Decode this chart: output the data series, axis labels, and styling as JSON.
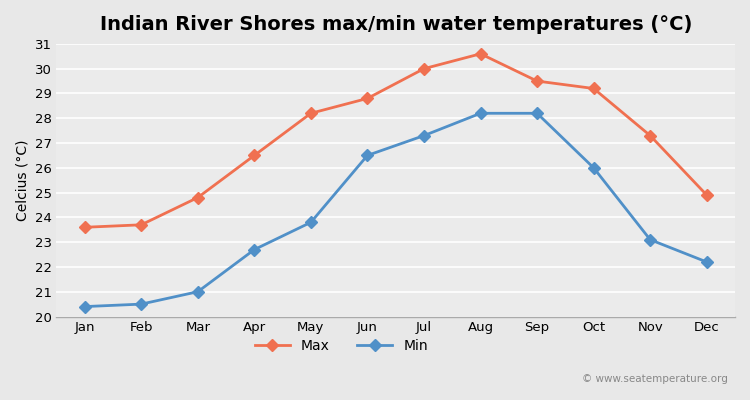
{
  "title": "Indian River Shores max/min water temperatures (°C)",
  "ylabel": "Celcius (°C)",
  "months": [
    "Jan",
    "Feb",
    "Mar",
    "Apr",
    "May",
    "Jun",
    "Jul",
    "Aug",
    "Sep",
    "Oct",
    "Nov",
    "Dec"
  ],
  "max_temps": [
    23.6,
    23.7,
    24.8,
    26.5,
    28.2,
    28.8,
    30.0,
    30.6,
    29.5,
    29.2,
    27.3,
    24.9
  ],
  "min_temps": [
    20.4,
    20.5,
    21.0,
    22.7,
    23.8,
    26.5,
    27.3,
    28.2,
    28.2,
    26.0,
    23.1,
    22.2
  ],
  "max_color": "#f07050",
  "min_color": "#5090c8",
  "bg_color": "#e8e8e8",
  "plot_bg_color": "#ebebeb",
  "grid_color": "#ffffff",
  "ylim": [
    20,
    31
  ],
  "yticks": [
    20,
    21,
    22,
    23,
    24,
    25,
    26,
    27,
    28,
    29,
    30,
    31
  ],
  "watermark": "© www.seatemperature.org",
  "title_fontsize": 14,
  "label_fontsize": 10,
  "tick_fontsize": 9.5
}
